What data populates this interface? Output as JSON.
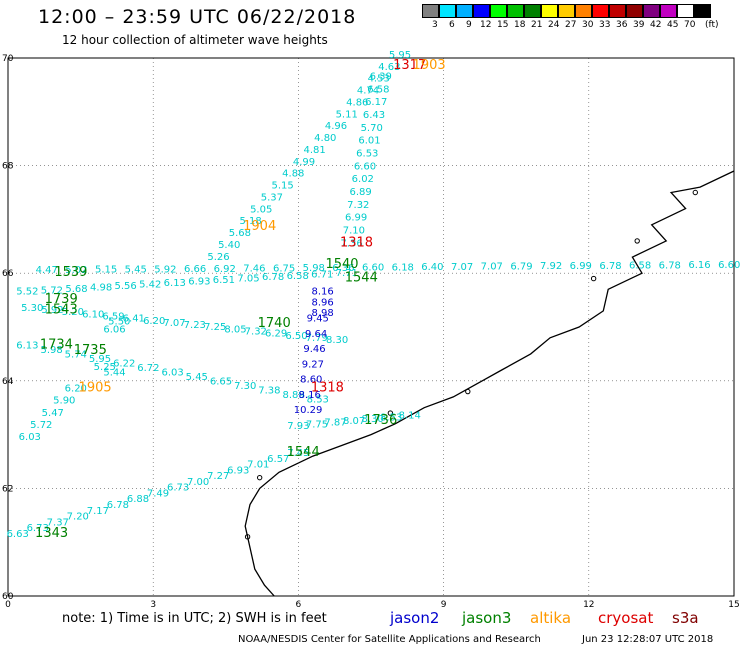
{
  "header": {
    "title": "12:00 – 23:59 UTC 06/22/2018",
    "subtitle": "12 hour collection of altimeter wave heights"
  },
  "legend": {
    "unit_label": "(ft)",
    "bins": [
      {
        "label": "3",
        "color": "#808080"
      },
      {
        "label": "6",
        "color": "#00e5ff"
      },
      {
        "label": "9",
        "color": "#00b0ff"
      },
      {
        "label": "12",
        "color": "#0000ff"
      },
      {
        "label": "15",
        "color": "#00ff00"
      },
      {
        "label": "18",
        "color": "#00c000"
      },
      {
        "label": "21",
        "color": "#008000"
      },
      {
        "label": "24",
        "color": "#ffff00"
      },
      {
        "label": "27",
        "color": "#ffcc00"
      },
      {
        "label": "30",
        "color": "#ff8000"
      },
      {
        "label": "33",
        "color": "#ff0000"
      },
      {
        "label": "36",
        "color": "#c00000"
      },
      {
        "label": "39",
        "color": "#900000"
      },
      {
        "label": "42",
        "color": "#800080"
      },
      {
        "label": "45",
        "color": "#c000c0"
      },
      {
        "label": "70",
        "color": "#ffffff"
      },
      {
        "label": "",
        "color": "#000000"
      }
    ]
  },
  "map": {
    "lon_min": 0,
    "lon_max": 15,
    "lat_min": 60,
    "lat_max": 70,
    "x_ticks": [
      "0",
      "3",
      "6",
      "9",
      "12",
      "15"
    ],
    "y_ticks": [
      "60",
      "62",
      "64",
      "66",
      "68",
      "70"
    ],
    "colors": {
      "cyan": "#00cccc",
      "blue": "#0000cc",
      "green": "#008000",
      "orange": "#ff9900",
      "red": "#dd0000"
    },
    "time_labels": [
      {
        "text": "1317",
        "lon": 8.3,
        "lat": 69.8,
        "color": "red"
      },
      {
        "text": "1903",
        "lon": 8.7,
        "lat": 69.8,
        "color": "orange"
      },
      {
        "text": "1904",
        "lon": 5.2,
        "lat": 66.8,
        "color": "orange"
      },
      {
        "text": "1318",
        "lon": 7.2,
        "lat": 66.5,
        "color": "red"
      },
      {
        "text": "1540",
        "lon": 6.9,
        "lat": 66.1,
        "color": "green"
      },
      {
        "text": "1539",
        "lon": 1.3,
        "lat": 65.95,
        "color": "green"
      },
      {
        "text": "1544",
        "lon": 7.3,
        "lat": 65.85,
        "color": "green"
      },
      {
        "text": "1739",
        "lon": 1.1,
        "lat": 65.45,
        "color": "green"
      },
      {
        "text": "1543",
        "lon": 1.1,
        "lat": 65.25,
        "color": "green"
      },
      {
        "text": "1740",
        "lon": 5.5,
        "lat": 65.0,
        "color": "green"
      },
      {
        "text": "1734",
        "lon": 1.0,
        "lat": 64.6,
        "color": "green"
      },
      {
        "text": "1735",
        "lon": 1.7,
        "lat": 64.5,
        "color": "green"
      },
      {
        "text": "1905",
        "lon": 1.8,
        "lat": 63.8,
        "color": "orange"
      },
      {
        "text": "1318",
        "lon": 6.6,
        "lat": 63.8,
        "color": "red"
      },
      {
        "text": "1736",
        "lon": 7.7,
        "lat": 63.2,
        "color": "green"
      },
      {
        "text": "1544",
        "lon": 6.1,
        "lat": 62.6,
        "color": "green"
      },
      {
        "text": "1343",
        "lon": 0.9,
        "lat": 61.1,
        "color": "green"
      }
    ],
    "tracks": [
      {
        "color": "cyan",
        "start": [
          4.35,
          66.25
        ],
        "end": [
          8.1,
          70.0
        ],
        "values": [
          "5.26",
          "5.40",
          "5.68",
          "5.18",
          "5.05",
          "5.37",
          "5.15",
          "4.88",
          "4.99",
          "4.81",
          "4.80",
          "4.96",
          "5.11",
          "4.86",
          "4.74",
          "4.53",
          "4.63",
          "5.95"
        ]
      },
      {
        "color": "cyan",
        "start": [
          7.1,
          66.5
        ],
        "end": [
          7.7,
          69.6
        ],
        "values": [
          "7.36",
          "7.10",
          "6.99",
          "7.32",
          "6.89",
          "6.02",
          "6.60",
          "6.53",
          "6.01",
          "5.70",
          "6.43",
          "6.17",
          "6.58",
          "6.39"
        ]
      },
      {
        "color": "cyan",
        "start": [
          0.8,
          66.0
        ],
        "end": [
          14.9,
          66.1
        ],
        "values": [
          "4.47",
          "5.02",
          "5.15",
          "5.45",
          "5.92",
          "6.66",
          "6.92",
          "7.46",
          "6.75",
          "5.98",
          "6.36",
          "6.60",
          "6.18",
          "6.40",
          "7.07",
          "7.07",
          "6.79",
          "7.92",
          "6.99",
          "6.78",
          "6.58",
          "6.78",
          "6.16",
          "6.60"
        ]
      },
      {
        "color": "cyan",
        "start": [
          0.4,
          65.6
        ],
        "end": [
          7.0,
          65.95
        ],
        "values": [
          "5.52",
          "5.72",
          "5.68",
          "4.98",
          "5.56",
          "5.42",
          "6.13",
          "6.93",
          "6.51",
          "7.05",
          "6.78",
          "6.58",
          "6.71",
          "7.71"
        ]
      },
      {
        "color": "cyan",
        "start": [
          0.5,
          65.3
        ],
        "end": [
          6.8,
          64.7
        ],
        "values": [
          "5.30",
          "5.92",
          "5.20",
          "6.10",
          "6.59",
          "6.41",
          "6.20",
          "7.07",
          "7.23",
          "7.25",
          "8.05",
          "7.32",
          "6.29",
          "6.50",
          "7.79",
          "8.30"
        ]
      },
      {
        "color": "cyan",
        "start": [
          2.3,
          65.05
        ],
        "end": [
          2.2,
          64.9
        ],
        "values": [
          "5.50",
          "6.06"
        ]
      },
      {
        "color": "cyan",
        "start": [
          0.4,
          64.6
        ],
        "end": [
          6.4,
          63.6
        ],
        "values": [
          "6.13",
          "5.98",
          "5.74",
          "5.95",
          "6.22",
          "6.72",
          "6.03",
          "5.45",
          "6.65",
          "7.30",
          "7.38",
          "8.89",
          "8.53"
        ]
      },
      {
        "color": "cyan",
        "start": [
          2.0,
          64.2
        ],
        "end": [
          2.2,
          64.1
        ],
        "values": [
          "5.25",
          "5.44"
        ]
      },
      {
        "color": "cyan",
        "start": [
          0.45,
          62.9
        ],
        "end": [
          1.4,
          63.8
        ],
        "values": [
          "6.03",
          "5.72",
          "5.47",
          "5.90",
          "6.20"
        ]
      },
      {
        "color": "cyan",
        "start": [
          6.0,
          63.1
        ],
        "end": [
          8.3,
          63.3
        ],
        "values": [
          "7.93",
          "7.75",
          "7.87",
          "8.07",
          "8.30",
          "8.53",
          "8.14"
        ]
      },
      {
        "color": "cyan",
        "start": [
          0.2,
          61.1
        ],
        "end": [
          6.0,
          62.6
        ],
        "values": [
          "6.63",
          "6.73",
          "7.37",
          "7.20",
          "7.17",
          "6.78",
          "6.88",
          "7.49",
          "6.73",
          "7.00",
          "7.27",
          "6.93",
          "7.01",
          "6.57",
          "7.45"
        ]
      },
      {
        "color": "blue",
        "start": [
          6.4,
          65.1
        ],
        "end": [
          6.2,
          63.4
        ],
        "values": [
          "9.45",
          "9.64",
          "9.46",
          "9.27",
          "8.60",
          "8.16",
          "10.29"
        ]
      },
      {
        "color": "blue",
        "start": [
          6.5,
          65.6
        ],
        "end": [
          6.5,
          65.2
        ],
        "values": [
          "8.16",
          "8.96",
          "8.98"
        ]
      }
    ]
  },
  "footer": {
    "note": "note:  1) Time is in UTC;  2) SWH is in feet",
    "sats": [
      {
        "text": "jason2",
        "color": "#0000cc"
      },
      {
        "text": "jason3",
        "color": "#008000"
      },
      {
        "text": "altika",
        "color": "#ff9900"
      },
      {
        "text": "cryosat",
        "color": "#dd0000"
      },
      {
        "text": "s3a",
        "color": "#800000"
      }
    ],
    "credit": "NOAA/NESDIS Center for Satellite Applications and Research",
    "timestamp": "Jun 23 12:28:07 UTC 2018"
  }
}
